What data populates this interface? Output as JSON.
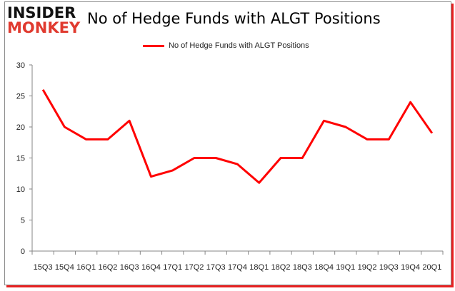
{
  "logo": {
    "line1": "INSIDER",
    "line2": "MONKEY"
  },
  "colors": {
    "series": "#ff0000",
    "axis": "#868686"
  },
  "chart_data": {
    "type": "line",
    "title": "No of Hedge Funds with ALGT Positions",
    "xlabel": "",
    "ylabel": "",
    "ylim": [
      0,
      30
    ],
    "yticks": [
      0,
      5,
      10,
      15,
      20,
      25,
      30
    ],
    "grid": false,
    "legend": "top-center",
    "categories": [
      "15Q3",
      "15Q4",
      "16Q1",
      "16Q2",
      "16Q3",
      "16Q4",
      "17Q1",
      "17Q2",
      "17Q3",
      "17Q4",
      "18Q1",
      "18Q2",
      "18Q3",
      "18Q4",
      "19Q1",
      "19Q2",
      "19Q3",
      "19Q4",
      "20Q1"
    ],
    "series": [
      {
        "name": "No of Hedge Funds with ALGT Positions",
        "values": [
          26,
          20,
          18,
          18,
          21,
          12,
          13,
          15,
          15,
          14,
          11,
          15,
          15,
          21,
          20,
          18,
          18,
          24,
          19
        ]
      }
    ]
  }
}
